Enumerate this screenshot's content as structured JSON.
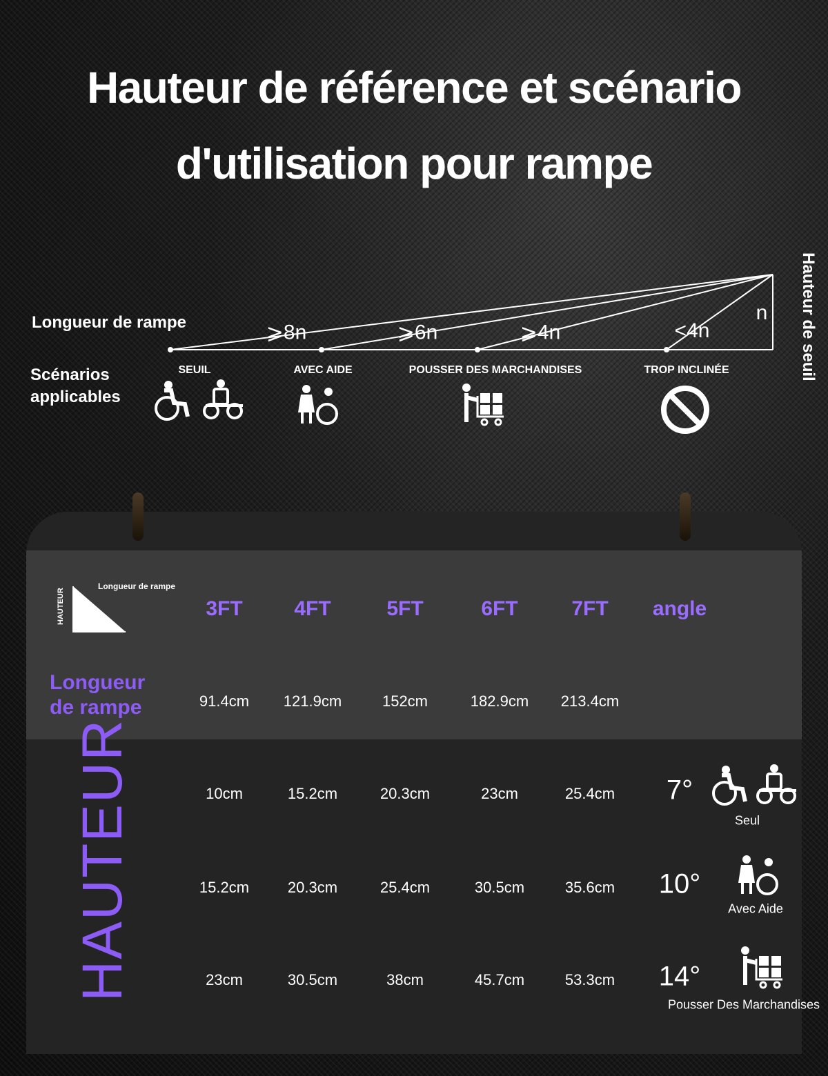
{
  "header": {
    "title": [
      "Hauteur de référence et scénario",
      "d'utilisation pour rampe"
    ]
  },
  "diagram": {
    "length_label": "Longueur de rampe",
    "scenarios_label": "Scénarios applicables",
    "ratios": [
      "⩾8n",
      "⩾6n",
      "⩾4n",
      "<4n"
    ],
    "n_label": "n",
    "threshold_label": "Hauteur de seuil",
    "scenarios": [
      "SEUIL",
      "AVEC AIDE",
      "POUSSER DES MARCHANDISES",
      "TROP INCLINÉE"
    ]
  },
  "table": {
    "icon_height_label": "HAUTEUR",
    "icon_length_label": "Longueur de rampe",
    "columns": [
      "3FT",
      "4FT",
      "5FT",
      "6FT",
      "7FT",
      "angle"
    ],
    "length_row": {
      "label": "Longueur de rampe",
      "values": [
        "91.4cm",
        "121.9cm",
        "152cm",
        "182.9cm",
        "213.4cm"
      ]
    },
    "height_label": "HAUTEUR",
    "rows": [
      {
        "values": [
          "10cm",
          "15.2cm",
          "20.3cm",
          "23cm",
          "25.4cm"
        ],
        "angle": "7°",
        "scenario": "Seul"
      },
      {
        "values": [
          "15.2cm",
          "20.3cm",
          "25.4cm",
          "30.5cm",
          "35.6cm"
        ],
        "angle": "10°",
        "scenario": "Avec Aide"
      },
      {
        "values": [
          "23cm",
          "30.5cm",
          "38cm",
          "45.7cm",
          "53.3cm"
        ],
        "angle": "14°",
        "scenario": "Pousser Des Marchandises"
      }
    ]
  }
}
